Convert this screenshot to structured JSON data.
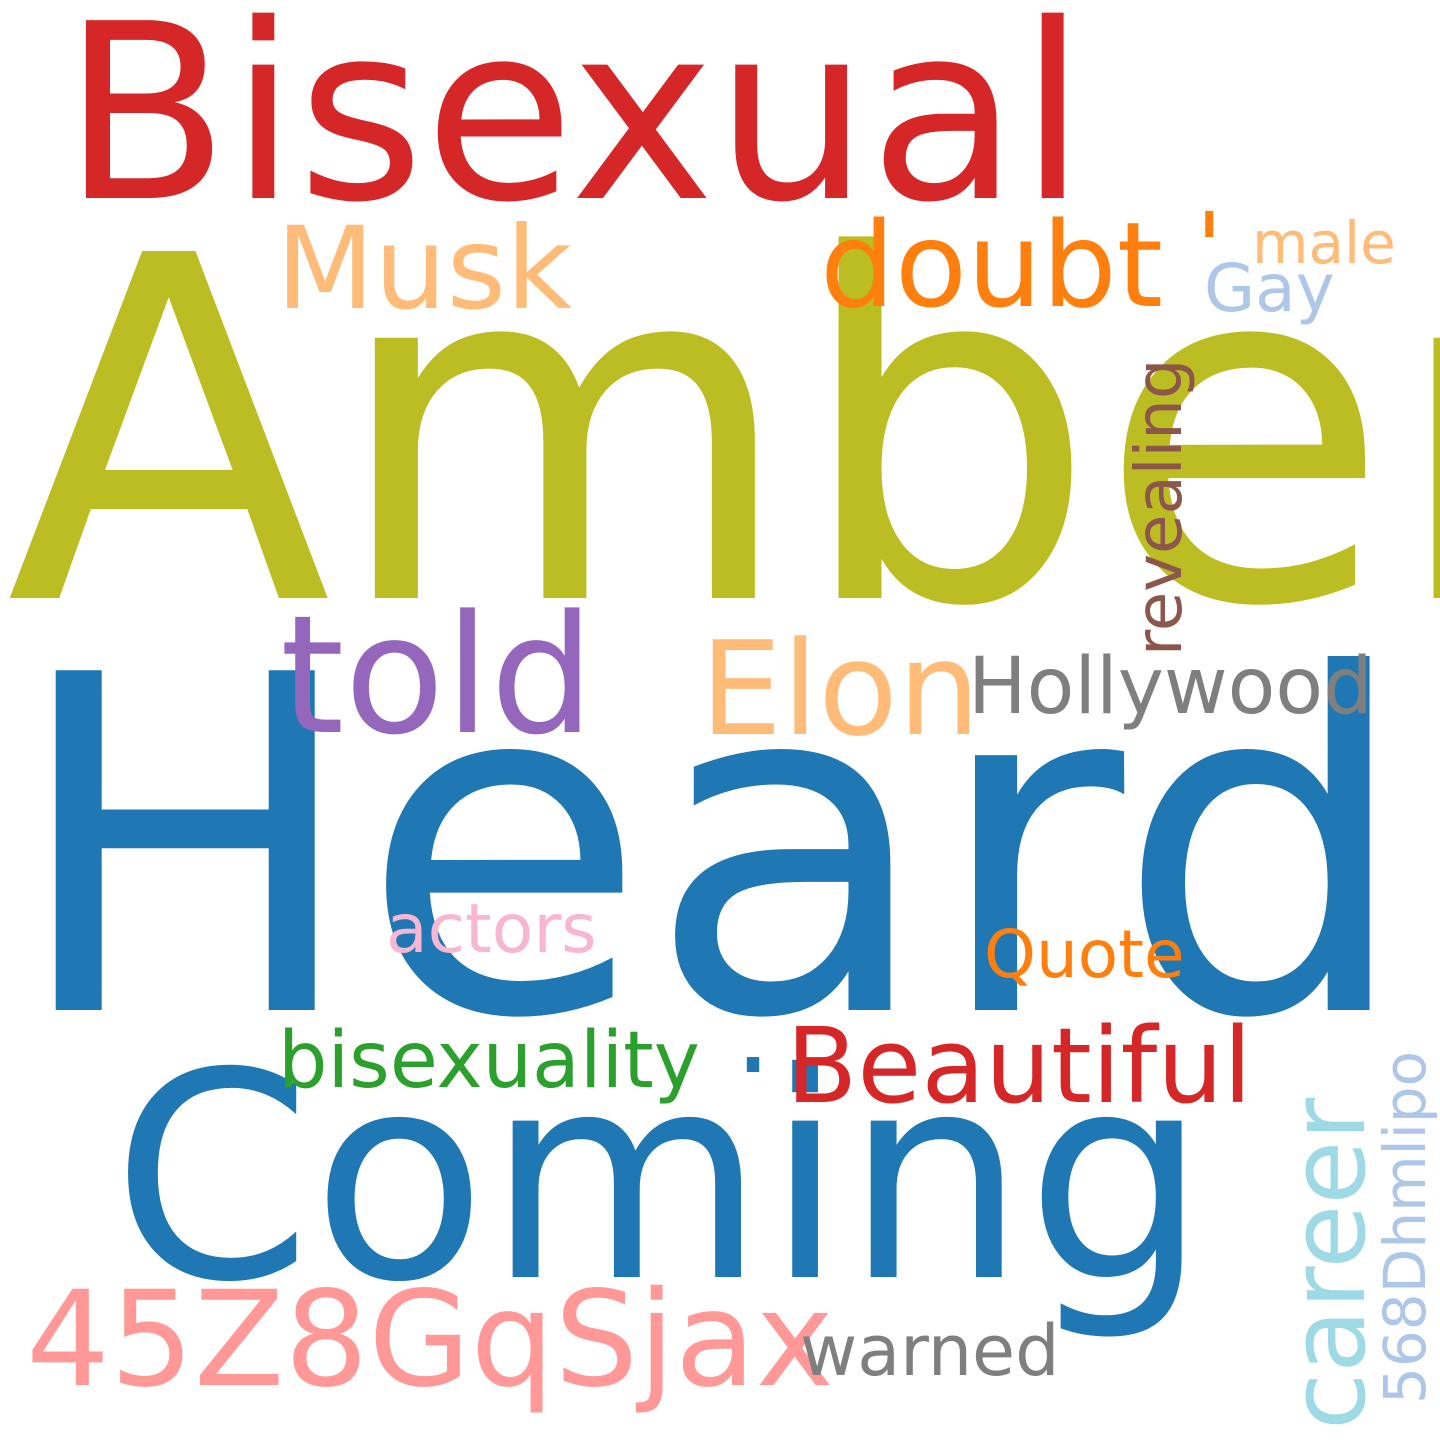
{
  "words": [
    {
      "key": "bisexual",
      "text": "Bisexual",
      "color": "#d62728",
      "orientation": "horizontal"
    },
    {
      "key": "amber",
      "text": "Amber",
      "color": "#bcbd22",
      "orientation": "horizontal"
    },
    {
      "key": "heard",
      "text": "Heard",
      "color": "#1f77b4",
      "orientation": "horizontal"
    },
    {
      "key": "coming",
      "text": "Coming",
      "color": "#1f77b4",
      "orientation": "horizontal"
    },
    {
      "key": "musk",
      "text": "Musk",
      "color": "#ffbb78",
      "orientation": "horizontal"
    },
    {
      "key": "doubt",
      "text": "doubt",
      "color": "#ff7f0e",
      "orientation": "horizontal"
    },
    {
      "key": "apostrophe",
      "text": "'",
      "color": "#ff7f0e",
      "orientation": "horizontal"
    },
    {
      "key": "male",
      "text": "male",
      "color": "#ffbb78",
      "orientation": "horizontal"
    },
    {
      "key": "gay",
      "text": "Gay",
      "color": "#aec7e8",
      "orientation": "horizontal"
    },
    {
      "key": "revealing",
      "text": "revealing",
      "color": "#8c564b",
      "orientation": "vertical"
    },
    {
      "key": "told",
      "text": "told",
      "color": "#9467bd",
      "orientation": "horizontal"
    },
    {
      "key": "elon",
      "text": "Elon",
      "color": "#ffbb78",
      "orientation": "horizontal"
    },
    {
      "key": "hollywood",
      "text": "Hollywood",
      "color": "#7f7f7f",
      "orientation": "horizontal"
    },
    {
      "key": "actors",
      "text": "actors",
      "color": "#f7b6d2",
      "orientation": "horizontal"
    },
    {
      "key": "quote",
      "text": "Quote",
      "color": "#ff7f0e",
      "orientation": "horizontal"
    },
    {
      "key": "bisexuality",
      "text": "bisexuality",
      "color": "#2ca02c",
      "orientation": "horizontal"
    },
    {
      "key": "dot",
      "text": ".",
      "color": "#1f77b4",
      "orientation": "horizontal"
    },
    {
      "key": "beautiful",
      "text": "Beautiful",
      "color": "#d62728",
      "orientation": "horizontal"
    },
    {
      "key": "career",
      "text": "career",
      "color": "#9edae5",
      "orientation": "vertical"
    },
    {
      "key": "code2",
      "text": "568Dhmlipo",
      "color": "#aec7e8",
      "orientation": "vertical"
    },
    {
      "key": "code1",
      "text": "45Z8GqSjax",
      "color": "#ff9896",
      "orientation": "horizontal"
    },
    {
      "key": "warned",
      "text": "warned",
      "color": "#7f7f7f",
      "orientation": "horizontal"
    }
  ]
}
